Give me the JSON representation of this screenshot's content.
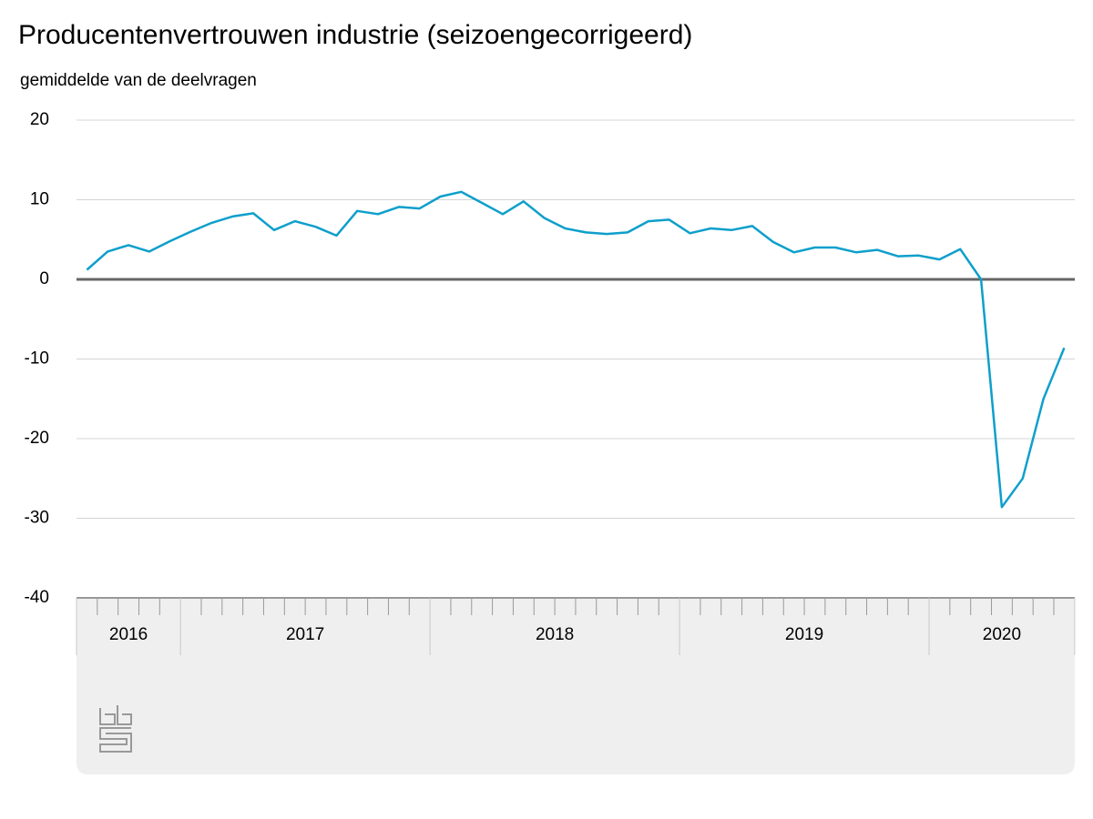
{
  "chart_data": {
    "type": "line",
    "title": "Producentenvertrouwen industrie (seizoengecorrigeerd)",
    "subtitle": "gemiddelde van de deelvragen",
    "categories": [
      "2016",
      "2016",
      "2016",
      "2016",
      "2016",
      "2017",
      "2017",
      "2017",
      "2017",
      "2017",
      "2017",
      "2017",
      "2017",
      "2017",
      "2017",
      "2017",
      "2017",
      "2018",
      "2018",
      "2018",
      "2018",
      "2018",
      "2018",
      "2018",
      "2018",
      "2018",
      "2018",
      "2018",
      "2018",
      "2019",
      "2019",
      "2019",
      "2019",
      "2019",
      "2019",
      "2019",
      "2019",
      "2019",
      "2019",
      "2019",
      "2019",
      "2020",
      "2020",
      "2020",
      "2020",
      "2020",
      "2020",
      "2020"
    ],
    "series": [
      {
        "name": "Producentenvertrouwen",
        "color": "#0e9fcb",
        "values": [
          1.2,
          3.5,
          4.3,
          3.5,
          4.8,
          6.0,
          7.1,
          7.9,
          8.3,
          6.2,
          7.3,
          6.6,
          5.5,
          8.6,
          8.2,
          9.1,
          8.9,
          10.4,
          11.0,
          9.6,
          8.2,
          9.8,
          7.7,
          6.4,
          5.9,
          5.7,
          5.9,
          7.3,
          7.5,
          5.8,
          6.4,
          6.2,
          6.7,
          4.7,
          3.4,
          4.0,
          4.0,
          3.4,
          3.7,
          2.9,
          3.0,
          2.5,
          3.8,
          0.0,
          -28.6,
          -25.0,
          -15.0,
          -8.6
        ]
      }
    ],
    "ylim": [
      -40,
      20
    ],
    "yticks": [
      -40,
      -30,
      -20,
      -10,
      0,
      10,
      20
    ],
    "grid": true
  }
}
